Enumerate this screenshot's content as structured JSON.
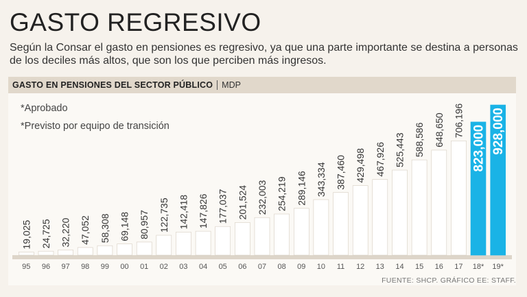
{
  "header": {
    "title": "GASTO REGRESIVO",
    "subtitle": "Según la Consar el gasto en pensiones es regresivo, ya que una parte importante se destina a personas de los deciles más altos, que son los que perciben más ingresos."
  },
  "chart_header": {
    "title": "GASTO EN PENSIONES DEL SECTOR PÚBLICO",
    "unit": "MDP"
  },
  "notes": {
    "approved": "*Aprobado",
    "projected": "*Previsto por equipo de transición"
  },
  "source": "FUENTE: SHCP. GRÁFICO EE: STAFF.",
  "colors": {
    "bar": "#ffffff",
    "bar_stroke": "#d6cdc0",
    "highlight": "#1ab3e6",
    "axis_base": "#ddd5c9"
  },
  "chart_data": {
    "type": "bar",
    "title": "GASTO EN PENSIONES DEL SECTOR PÚBLICO",
    "ylabel": "MDP",
    "xlabel": "",
    "ylim": [
      0,
      928000
    ],
    "categories": [
      "95",
      "96",
      "97",
      "98",
      "99",
      "00",
      "01",
      "02",
      "03",
      "04",
      "05",
      "06",
      "07",
      "08",
      "09",
      "10",
      "11",
      "12",
      "13",
      "14",
      "15",
      "16",
      "17",
      "18*",
      "19*"
    ],
    "values": [
      19025,
      24725,
      32220,
      47052,
      58308,
      69148,
      80957,
      122735,
      142418,
      147826,
      177037,
      201524,
      232003,
      254219,
      289146,
      343334,
      387460,
      429498,
      467926,
      525443,
      588586,
      648650,
      706196,
      823000,
      928000
    ],
    "value_labels": [
      "19,025",
      "24,725",
      "32,220",
      "47,052",
      "58,308",
      "69,148",
      "80,957",
      "122,735",
      "142,418",
      "147,826",
      "177,037",
      "201,524",
      "232,003",
      "254,219",
      "289,146",
      "343,334",
      "387,460",
      "429,498",
      "467,926",
      "525,443",
      "588,586",
      "648,650",
      "706,196",
      "823,000",
      "928,000"
    ],
    "highlighted": [
      "18*",
      "19*"
    ]
  }
}
